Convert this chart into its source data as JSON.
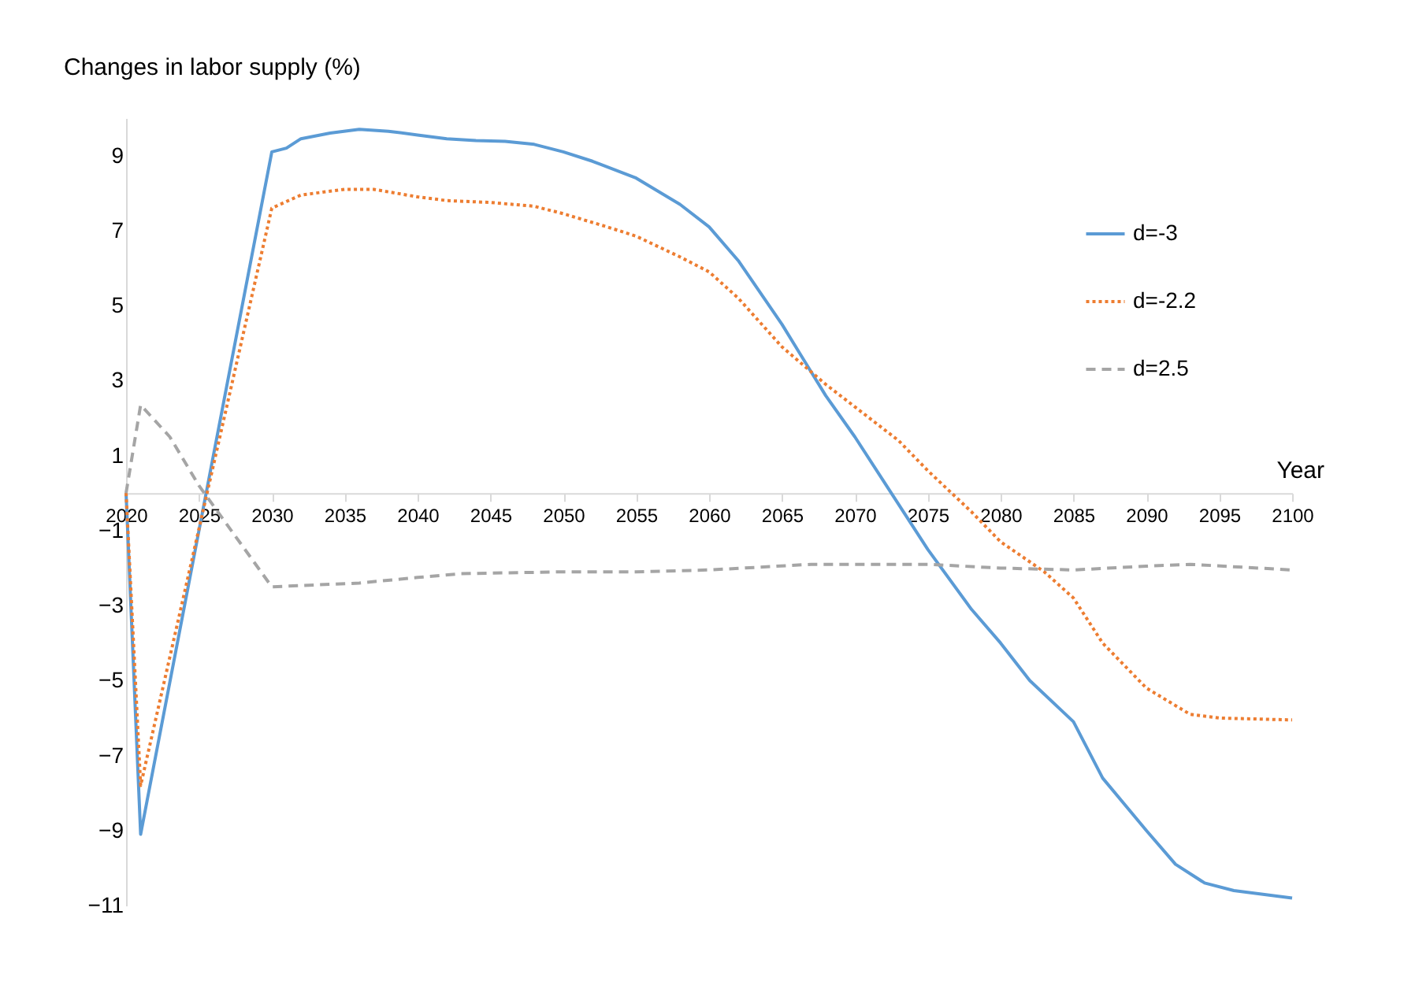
{
  "chart_data": {
    "type": "line",
    "ylabel": "Changes in labor supply (%)",
    "xlabel": "Year",
    "xlim": [
      2020,
      2100
    ],
    "xticks": [
      2020,
      2025,
      2030,
      2035,
      2040,
      2045,
      2050,
      2055,
      2060,
      2065,
      2070,
      2075,
      2080,
      2085,
      2090,
      2095,
      2100
    ],
    "ylim": [
      -11,
      10
    ],
    "yticks": [
      9,
      7,
      5,
      3,
      1,
      -1,
      -3,
      -5,
      -7,
      -9,
      -11
    ],
    "grid": false,
    "legend": "top right",
    "marker": "none",
    "series": [
      {
        "name": "d=-3",
        "color": "#5b9bd5",
        "line_style": "solid",
        "x": [
          2020,
          2021,
          2025,
          2030,
          2031,
          2032,
          2034,
          2036,
          2038,
          2040,
          2042,
          2044,
          2046,
          2048,
          2050,
          2052,
          2055,
          2058,
          2060,
          2062,
          2065,
          2068,
          2070,
          2072,
          2075,
          2078,
          2080,
          2082,
          2085,
          2087,
          2090,
          2092,
          2094,
          2096,
          2100
        ],
        "values": [
          0,
          -9.1,
          -1.0,
          9.1,
          9.2,
          9.45,
          9.6,
          9.7,
          9.65,
          9.55,
          9.45,
          9.4,
          9.38,
          9.3,
          9.1,
          8.85,
          8.4,
          7.7,
          7.1,
          6.2,
          4.5,
          2.6,
          1.5,
          0.3,
          -1.5,
          -3.1,
          -4.0,
          -5.0,
          -6.1,
          -7.6,
          -9.0,
          -9.9,
          -10.4,
          -10.6,
          -10.8
        ]
      },
      {
        "name": "d=-2.2",
        "color": "#ed7d31",
        "line_style": "dotted",
        "x": [
          2020,
          2021,
          2030,
          2032,
          2035,
          2037,
          2040,
          2042,
          2045,
          2048,
          2050,
          2053,
          2055,
          2058,
          2060,
          2062,
          2065,
          2068,
          2070,
          2073,
          2075,
          2078,
          2080,
          2083,
          2085,
          2087,
          2090,
          2093,
          2095,
          2100
        ],
        "values": [
          0,
          -7.8,
          7.6,
          7.95,
          8.1,
          8.1,
          7.9,
          7.8,
          7.75,
          7.65,
          7.45,
          7.1,
          6.85,
          6.3,
          5.9,
          5.2,
          3.9,
          2.9,
          2.3,
          1.4,
          0.6,
          -0.5,
          -1.3,
          -2.1,
          -2.8,
          -4.0,
          -5.2,
          -5.9,
          -6.0,
          -6.05
        ]
      },
      {
        "name": "d=2.5",
        "color": "#a5a5a5",
        "line_style": "dashed",
        "x": [
          2020,
          2021,
          2023,
          2025,
          2030,
          2033,
          2036,
          2040,
          2043,
          2050,
          2055,
          2060,
          2067,
          2075,
          2080,
          2085,
          2090,
          2093,
          2100
        ],
        "values": [
          0,
          2.35,
          1.5,
          0.2,
          -2.5,
          -2.45,
          -2.4,
          -2.25,
          -2.15,
          -2.1,
          -2.1,
          -2.05,
          -1.9,
          -1.9,
          -2.0,
          -2.05,
          -1.95,
          -1.9,
          -2.05
        ]
      }
    ]
  }
}
